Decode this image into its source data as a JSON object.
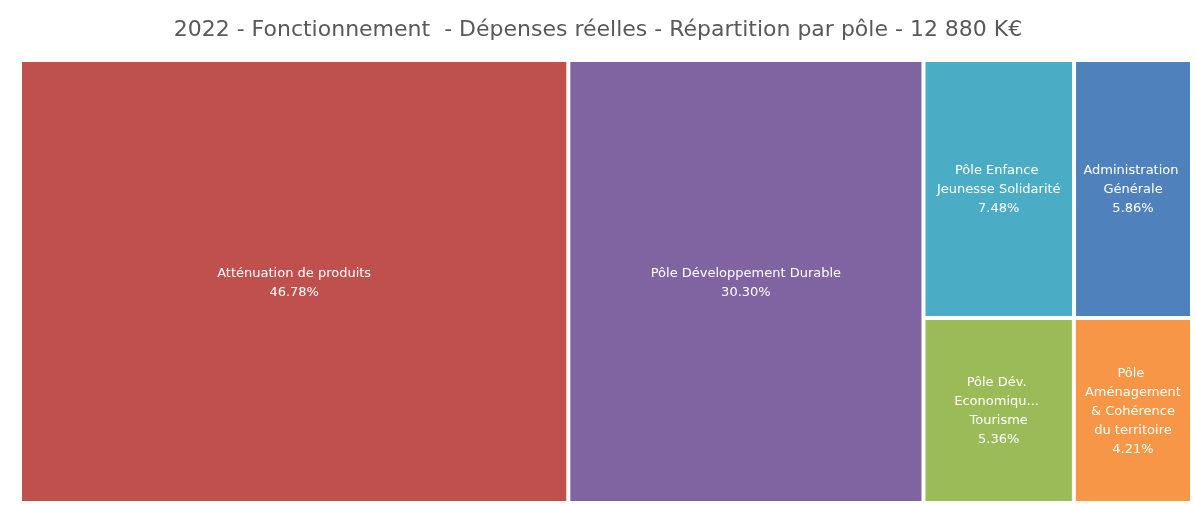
{
  "chart_data": {
    "type": "other",
    "title": "2022 - Fonctionnement  - Dépenses réelles - Répartition par pôle - 12 880 K€",
    "categories": [
      "Atténuation de produits",
      "Pôle Développement Durable",
      "Pôle Enfance Jeunesse Solidarité",
      "Administration Générale",
      "Pôle Dév. Economiqu... Tourisme",
      "Pôle Aménagement & Cohérence du territoire"
    ],
    "values": [
      46.78,
      30.3,
      7.48,
      5.86,
      5.36,
      4.21
    ],
    "value_labels": [
      "46.78%",
      "30.30%",
      "7.48%",
      "5.86%",
      "5.36%",
      "4.21%"
    ],
    "colors": [
      "#c0504d",
      "#8064a2",
      "#4bacc6",
      "#4f81bd",
      "#9bbb59",
      "#f79646"
    ]
  }
}
